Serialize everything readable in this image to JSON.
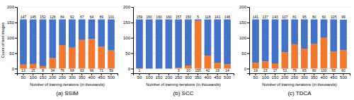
{
  "chart_data": [
    {
      "type": "bar",
      "stacked": true,
      "title": "(a) SSIM",
      "x_label": "Number of training iterations (in thousands)",
      "y_label": "Count of test images",
      "categories": [
        50,
        100,
        150,
        200,
        250,
        300,
        350,
        400,
        450,
        500
      ],
      "series": [
        {
          "color": "#f07830",
          "values": [
            13,
            15,
            8,
            34,
            76,
            68,
            93,
            96,
            71,
            59
          ]
        },
        {
          "color": "#4472c4",
          "values": [
            147,
            145,
            152,
            126,
            84,
            92,
            67,
            64,
            89,
            101
          ]
        }
      ],
      "ylim": [
        -15,
        200
      ],
      "yticks": [
        0,
        50,
        100,
        150,
        200
      ],
      "grid": true,
      "data_labels": true
    },
    {
      "type": "bar",
      "stacked": true,
      "title": "(b) SCC",
      "x_label": "Number of training iterations (in thousands)",
      "categories": [
        50,
        100,
        150,
        200,
        250,
        300,
        350,
        400,
        450,
        500
      ],
      "series": [
        {
          "color": "#f07830",
          "values": [
            1,
            0,
            0,
            0,
            3,
            10,
            155,
            42,
            19,
            14
          ]
        },
        {
          "color": "#4472c4",
          "values": [
            159,
            160,
            160,
            160,
            157,
            150,
            5,
            118,
            141,
            146
          ]
        }
      ],
      "ylim": [
        -15,
        200
      ],
      "yticks": [
        0,
        50,
        100,
        150,
        200
      ],
      "grid": true,
      "data_labels": true
    },
    {
      "type": "bar",
      "stacked": true,
      "title": "(c) TDCA",
      "x_label": "Number of training iterations (in thousands)",
      "categories": [
        50,
        100,
        150,
        200,
        250,
        300,
        350,
        400,
        450,
        500
      ],
      "series": [
        {
          "color": "#f07830",
          "values": [
            19,
            23,
            17,
            53,
            79,
            65,
            80,
            100,
            55,
            60
          ]
        },
        {
          "color": "#4472c4",
          "values": [
            141,
            137,
            143,
            107,
            81,
            95,
            80,
            60,
            105,
            99
          ]
        }
      ],
      "ylim": [
        -15,
        200
      ],
      "yticks": [
        0,
        50,
        100,
        150,
        200
      ],
      "grid": true,
      "data_labels": true
    }
  ]
}
